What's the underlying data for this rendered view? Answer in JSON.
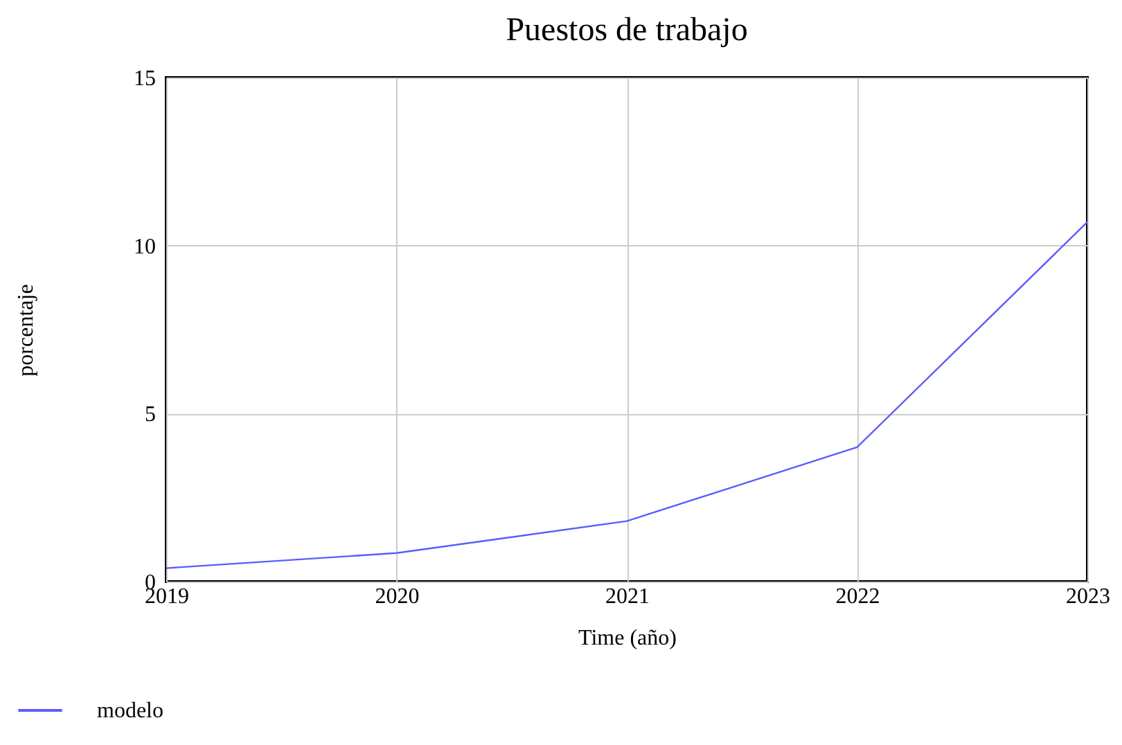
{
  "chart_data": {
    "type": "line",
    "title": "Puestos de trabajo",
    "xlabel": "Time (año)",
    "ylabel": "porcentaje",
    "x": [
      2019,
      2020,
      2021,
      2022,
      2023
    ],
    "series": [
      {
        "name": "modelo",
        "color": "#5b5bff",
        "values": [
          0.4,
          0.85,
          1.8,
          4.0,
          10.7
        ]
      }
    ],
    "xlim": [
      2019,
      2023
    ],
    "xticks": [
      2019,
      2020,
      2021,
      2022,
      2023
    ],
    "ylim": [
      0,
      15
    ],
    "yticks": [
      0,
      5,
      10,
      15
    ],
    "grid": true,
    "legend": "bottom",
    "marker": "none",
    "line_style": "solid"
  }
}
